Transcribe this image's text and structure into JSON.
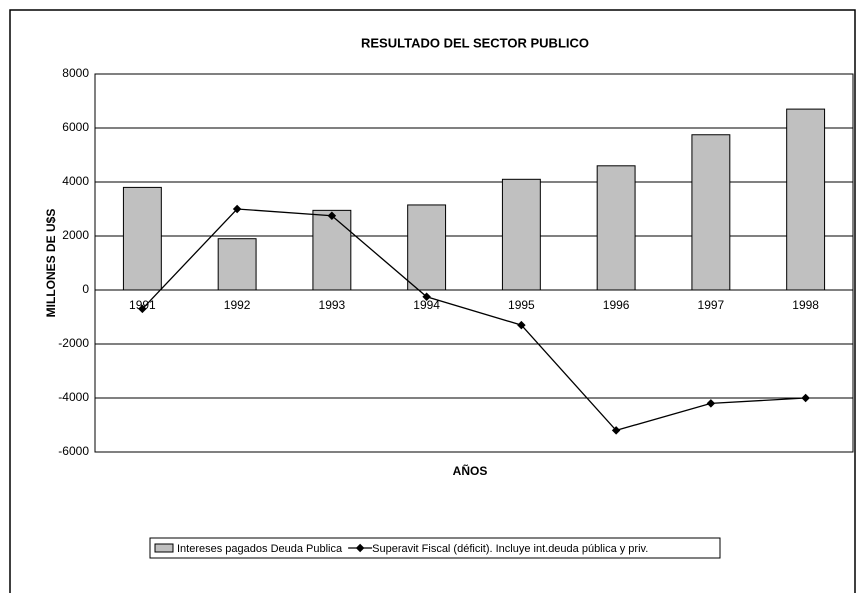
{
  "chart_data": {
    "type": "bar",
    "title": "RESULTADO DEL SECTOR PUBLICO",
    "x_label": "AÑOS",
    "y_label": "MILLONES DE U$S",
    "categories": [
      "1991",
      "1992",
      "1993",
      "1994",
      "1995",
      "1996",
      "1997",
      "1998"
    ],
    "series": [
      {
        "name": "Intereses pagados Deuda Publica",
        "type": "bar",
        "color": "#c0c0c0",
        "values": [
          3800,
          1900,
          2950,
          3150,
          4100,
          4600,
          5750,
          6700
        ]
      },
      {
        "name": "Superavit Fiscal (déficit). Incluye int.deuda pública y priv.",
        "type": "line",
        "color": "#000000",
        "values": [
          -700,
          3000,
          2750,
          -250,
          -1300,
          -5200,
          -4200,
          -4000
        ]
      }
    ],
    "ylim": [
      -6000,
      8000
    ],
    "yticks": [
      -6000,
      -4000,
      -2000,
      0,
      2000,
      4000,
      6000,
      8000
    ],
    "grid": true,
    "legend": "bottom"
  }
}
